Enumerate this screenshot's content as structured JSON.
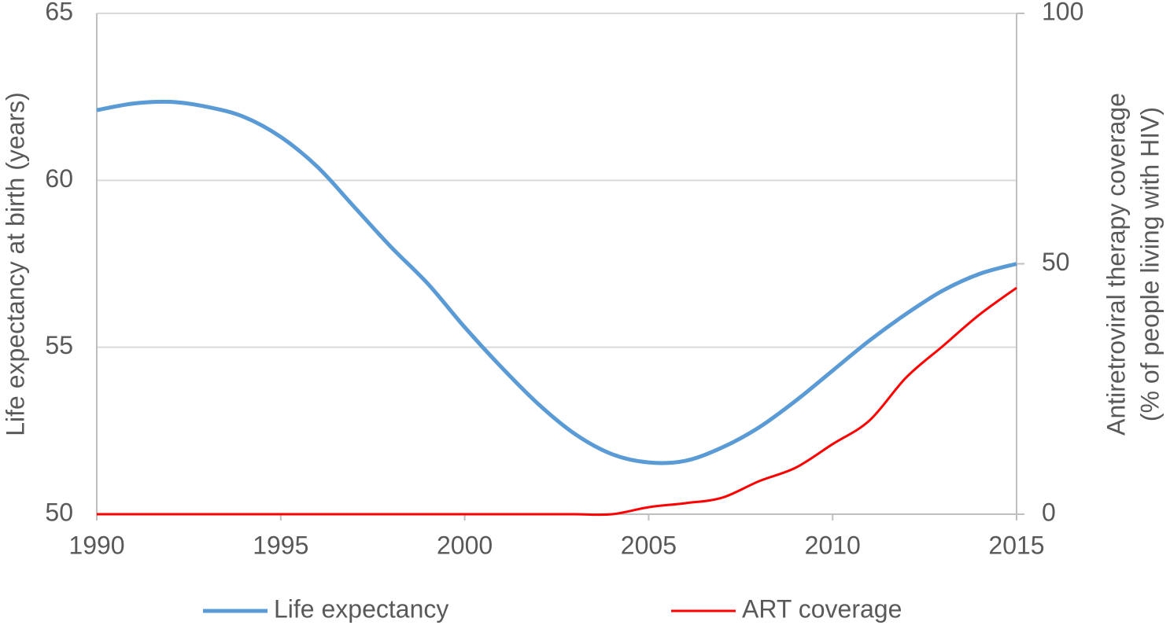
{
  "chart_data": {
    "type": "line",
    "x": [
      1990,
      1991,
      1992,
      1993,
      1994,
      1995,
      1996,
      1997,
      1998,
      1999,
      2000,
      2001,
      2002,
      2003,
      2004,
      2005,
      2006,
      2007,
      2008,
      2009,
      2010,
      2011,
      2012,
      2013,
      2014,
      2015
    ],
    "series": [
      {
        "name": "Life expectancy",
        "color": "#5b9bd5",
        "axis": "y",
        "values": [
          62.1,
          62.3,
          62.35,
          62.2,
          61.9,
          61.3,
          60.4,
          59.2,
          58.0,
          56.9,
          55.6,
          54.4,
          53.3,
          52.4,
          51.8,
          51.55,
          51.6,
          52.0,
          52.6,
          53.4,
          54.3,
          55.2,
          56.0,
          56.7,
          57.2,
          57.5
        ]
      },
      {
        "name": "ART coverage",
        "color": "#ff0000",
        "axis": "y2",
        "values": [
          0,
          0,
          0,
          0,
          0,
          0,
          0,
          0,
          0,
          0,
          0,
          0,
          0,
          0,
          0,
          1.4,
          2.2,
          3.3,
          6.6,
          9.3,
          14,
          18.7,
          27.3,
          33.6,
          39.9,
          45.2
        ]
      }
    ],
    "ylabel": "Life expectancy at birth (years)",
    "y2label": [
      "Antiretroviral therapy coverage",
      "(% of people living with HIV)"
    ],
    "xlim": [
      1990,
      2015
    ],
    "xticks": [
      1990,
      1995,
      2000,
      2005,
      2010,
      2015
    ],
    "ylim": [
      50,
      65
    ],
    "yticks": [
      50,
      55,
      60,
      65
    ],
    "y2lim": [
      0,
      100
    ],
    "y2ticks": [
      0,
      50,
      100
    ],
    "grid": true,
    "legend": "bottom"
  }
}
